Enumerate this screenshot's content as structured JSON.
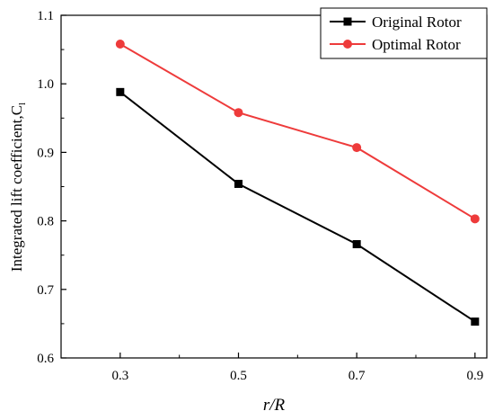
{
  "chart_data": {
    "type": "line",
    "title": "",
    "xlabel": "r/R",
    "ylabel_main": "Integrated lift coefficient,C",
    "ylabel_sub": "l",
    "x": [
      0.3,
      0.5,
      0.7,
      0.9
    ],
    "x_tick_labels": [
      "0.3",
      "0.5",
      "0.7",
      "0.9"
    ],
    "xlim": [
      0.2,
      0.92
    ],
    "ylim": [
      0.6,
      1.1
    ],
    "y_ticks": [
      0.6,
      0.7,
      0.8,
      0.9,
      1.0,
      1.1
    ],
    "y_tick_labels": [
      "0.6",
      "0.7",
      "0.8",
      "0.9",
      "1.0",
      "1.1"
    ],
    "grid": false,
    "legend_position": "top-right",
    "series": [
      {
        "name": "Original Rotor",
        "color": "#000000",
        "marker": "square",
        "values": [
          0.988,
          0.854,
          0.766,
          0.653
        ]
      },
      {
        "name": "Optimal Rotor",
        "color": "#ee3b3b",
        "marker": "circle",
        "values": [
          1.058,
          0.958,
          0.907,
          0.803
        ]
      }
    ]
  }
}
